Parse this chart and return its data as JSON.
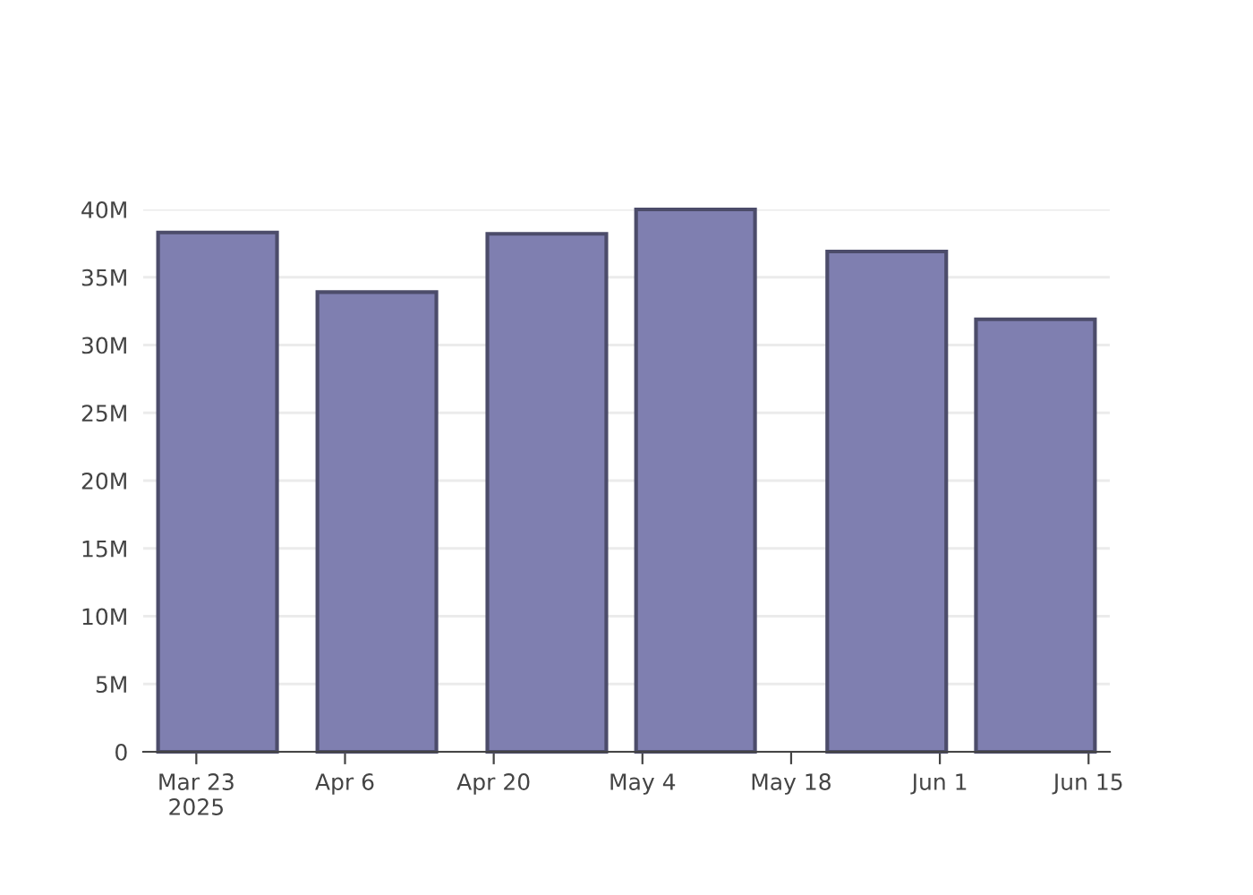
{
  "chart_data": {
    "type": "bar",
    "x": [
      "2025-03-25",
      "2025-04-09",
      "2025-04-25",
      "2025-05-09",
      "2025-05-27",
      "2025-06-10"
    ],
    "series": [
      {
        "color": "#7f7fb0",
        "values": [
          38.3,
          33.9,
          38.2,
          40,
          36.9,
          31.9
        ]
      }
    ],
    "xlim": [
      "2025-03-18",
      "2025-06-17"
    ],
    "xticks": [
      {
        "value": "2025-03-23",
        "label": "Mar 23\n2025"
      },
      {
        "value": "2025-04-06",
        "label": "Apr 6"
      },
      {
        "value": "2025-04-20",
        "label": "Apr 20"
      },
      {
        "value": "2025-05-04",
        "label": "May 4"
      },
      {
        "value": "2025-05-18",
        "label": "May 18"
      },
      {
        "value": "2025-06-01",
        "label": "Jun 1"
      },
      {
        "value": "2025-06-15",
        "label": "Jun 15"
      }
    ],
    "ylim": [
      0,
      40
    ],
    "yticks": [
      {
        "value": 0,
        "label": "0"
      },
      {
        "value": 5,
        "label": "5M"
      },
      {
        "value": 10,
        "label": "10M"
      },
      {
        "value": 15,
        "label": "15M"
      },
      {
        "value": 20,
        "label": "20M"
      },
      {
        "value": 25,
        "label": "25M"
      },
      {
        "value": 30,
        "label": "30M"
      },
      {
        "value": 35,
        "label": "35M"
      },
      {
        "value": 40,
        "label": "40M"
      }
    ],
    "grid": "y",
    "legend": false
  }
}
